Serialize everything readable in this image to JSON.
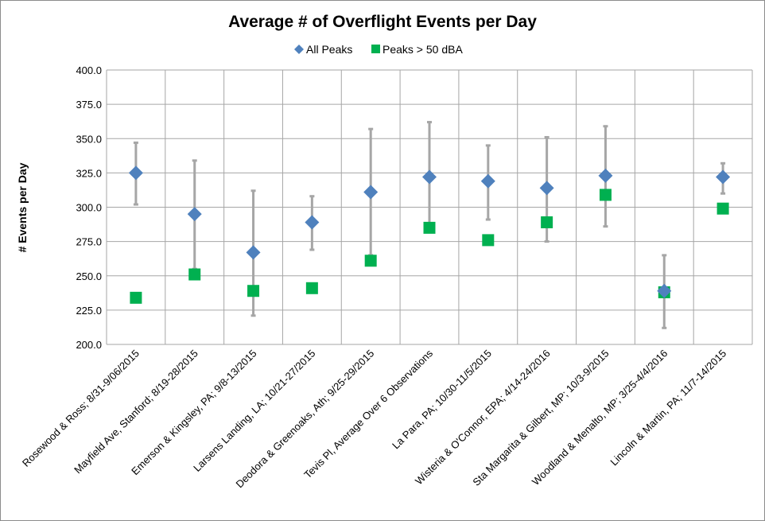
{
  "chart_data": {
    "type": "scatter",
    "title": "Average # of Overflight Events per Day",
    "xlabel": "",
    "ylabel": "# Events per Day",
    "ylim": [
      200,
      400
    ],
    "yticks": [
      "200.0",
      "225.0",
      "250.0",
      "275.0",
      "300.0",
      "325.0",
      "350.0",
      "375.0",
      "400.0"
    ],
    "grid": true,
    "legend_position": "top",
    "categories": [
      "Rosewood & Ross; 8/31-9/06/2015",
      "Mayfield Ave, Stanford; 8/19-28/2015",
      "Emerson & Kingsley, PA; 9/8-13/2015",
      "Larsens Landing, LA; 10/21-27/2015",
      "Deodora & Greenoaks, Ath; 9/25-29/2015",
      "Tevis Pl, Average Over 6 Observations",
      "La Para, PA; 10/30-11/5/2015",
      "Wisteria & O'Connor, EPA; 4/14-24/2016",
      "Sta Margarita & Gilbert, MP; 10/3-9/2015",
      "Woodland & Menalto, MP; 3/25-4/4/2016",
      "Lincoln & Martin, PA; 11/7-14/2015"
    ],
    "series": [
      {
        "name": "All Peaks",
        "marker": "diamond",
        "color": "#4f81bd",
        "values": [
          325,
          295,
          267,
          289,
          311,
          322,
          319,
          314,
          323,
          239,
          322
        ],
        "error_low": [
          302,
          255,
          221,
          269,
          265,
          282,
          291,
          275,
          286,
          212,
          310
        ],
        "error_high": [
          347,
          334,
          312,
          308,
          357,
          362,
          345,
          351,
          359,
          265,
          332
        ]
      },
      {
        "name": "Peaks > 50 dBA",
        "marker": "square",
        "color": "#00b050",
        "values": [
          234,
          251,
          239,
          241,
          261,
          285,
          276,
          289,
          309,
          238,
          299
        ]
      }
    ],
    "errorbar_color": "#a6a6a6",
    "gridline_color": "#a6a6a6"
  }
}
